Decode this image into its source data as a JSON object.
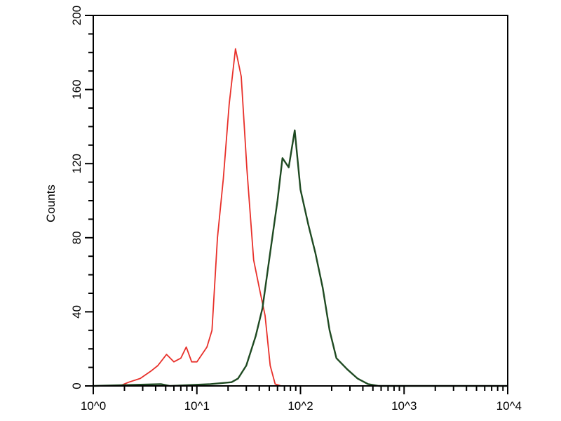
{
  "chart_data": {
    "type": "line",
    "title": "",
    "xlabel": "",
    "ylabel": "Counts",
    "x_scale": "log",
    "xlim": [
      1,
      10000
    ],
    "ylim": [
      0,
      200
    ],
    "x_ticks": [
      1,
      10,
      100,
      1000,
      10000
    ],
    "x_tick_labels": [
      "10^0",
      "10^1",
      "10^2",
      "10^3",
      "10^4"
    ],
    "y_ticks": [
      0,
      40,
      80,
      120,
      160,
      200
    ],
    "y_tick_labels": [
      "0",
      "40",
      "80",
      "120",
      "160",
      "200"
    ],
    "grid": false,
    "legend": "none",
    "series": [
      {
        "color": "#e8302a",
        "x": [
          1,
          1.8,
          2.2,
          2.84,
          3.6,
          4.2,
          5.1,
          6.0,
          7.0,
          7.9,
          8.9,
          10,
          12.5,
          14,
          15.8,
          18,
          20.5,
          23.6,
          26.8,
          30.4,
          35.3,
          40,
          45.5,
          51,
          57,
          65,
          10000
        ],
        "y": [
          0,
          0,
          2,
          4,
          8,
          11,
          17,
          13,
          15,
          21,
          13,
          13,
          21,
          30,
          80,
          112,
          152,
          182,
          167,
          117,
          68,
          53,
          38,
          11,
          1,
          0,
          0
        ]
      },
      {
        "color": "#1f4a22",
        "x": [
          1,
          4.5,
          5.5,
          13.5,
          21.6,
          25,
          30,
          37,
          43,
          51,
          60,
          67,
          77,
          88,
          100,
          119,
          139,
          164,
          191,
          222,
          282,
          355,
          450,
          570,
          10000
        ],
        "y": [
          0,
          1,
          0,
          1,
          2,
          4,
          11,
          27,
          42,
          72,
          100,
          123,
          118,
          138,
          106,
          87,
          72,
          53,
          30,
          15,
          9,
          4,
          1,
          0,
          0
        ]
      }
    ]
  }
}
